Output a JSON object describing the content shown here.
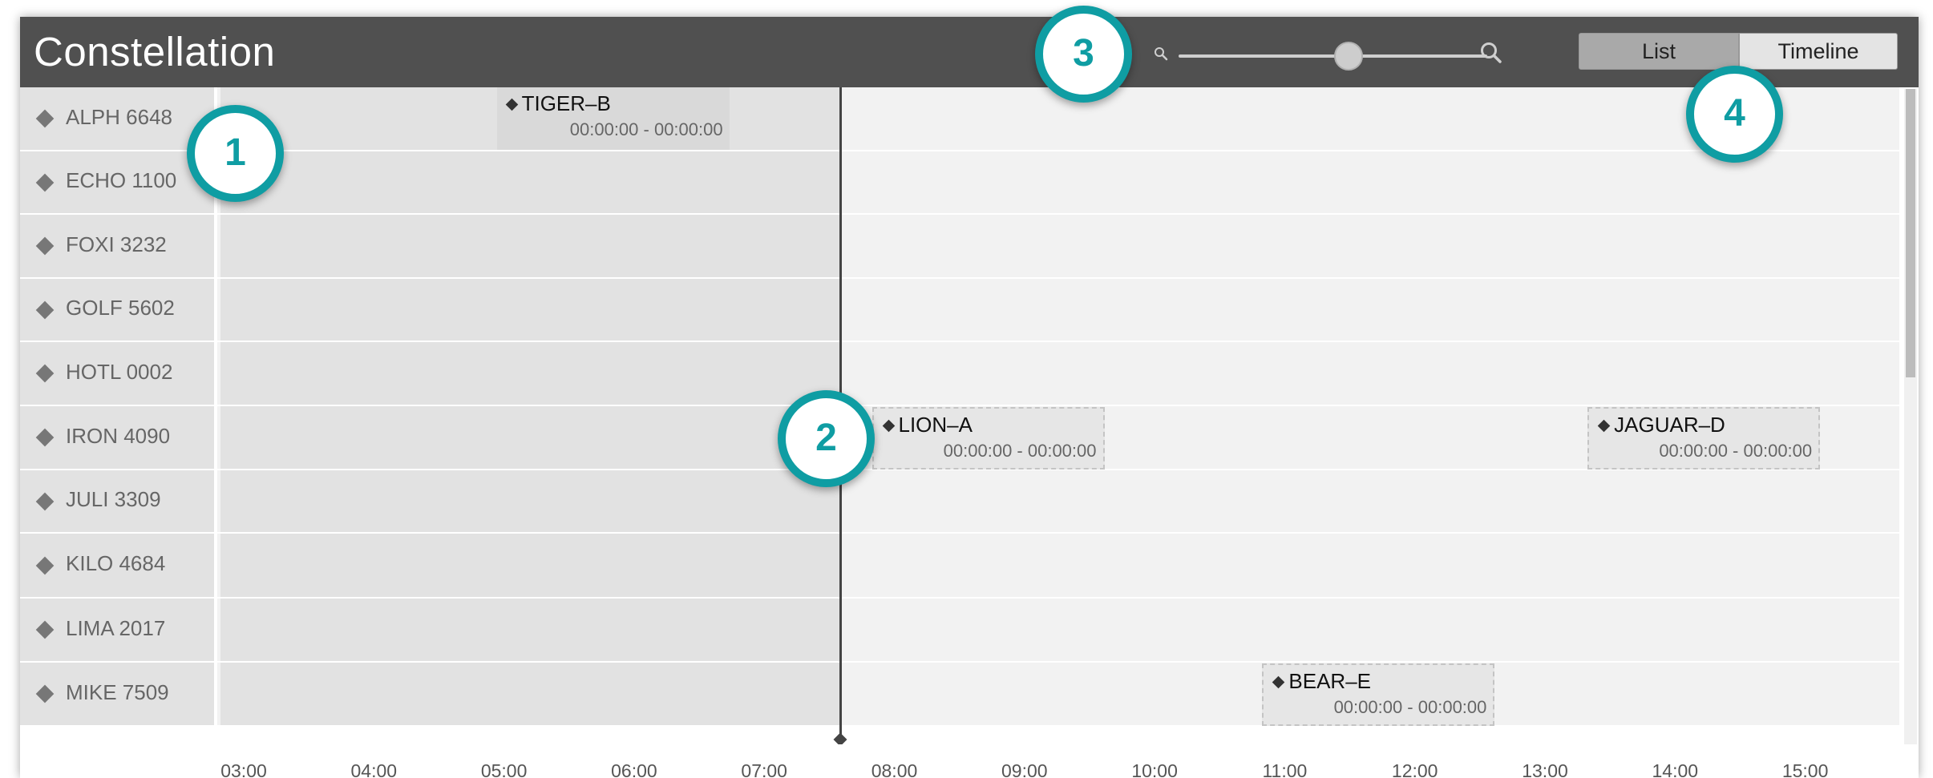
{
  "app": {
    "title": "Constellation"
  },
  "toolbar": {
    "zoom_out_icon": "zoom-out-magnifier-icon",
    "zoom_in_icon": "zoom-in-magnifier-icon",
    "zoom_level": 0.55,
    "views": {
      "list": "List",
      "timeline": "Timeline",
      "selected": "List"
    }
  },
  "rows": [
    {
      "label": "ALPH 6648"
    },
    {
      "label": "ECHO 1100"
    },
    {
      "label": "FOXI 3232"
    },
    {
      "label": "GOLF 5602"
    },
    {
      "label": "HOTL 0002"
    },
    {
      "label": "IRON 4090"
    },
    {
      "label": "JULI 3309"
    },
    {
      "label": "KILO 4684"
    },
    {
      "label": "LIMA 2017"
    },
    {
      "label": "MIKE 7509"
    }
  ],
  "events": [
    {
      "name": "TIGER–B",
      "time": "00:00:00 - 00:00:00",
      "row": "ALPH 6648",
      "start": "05:00",
      "style": "solid"
    },
    {
      "name": "LION–A",
      "time": "00:00:00 - 00:00:00",
      "row": "IRON 4090",
      "start": "08:00",
      "style": "dashed"
    },
    {
      "name": "JAGUAR–D",
      "time": "00:00:00 - 00:00:00",
      "row": "IRON 4090",
      "start": "13:30",
      "style": "dashed"
    },
    {
      "name": "BEAR–E",
      "time": "00:00:00 - 00:00:00",
      "row": "MIKE 7509",
      "start": "11:00",
      "style": "dashed"
    }
  ],
  "axis": {
    "ticks": [
      "03:00",
      "04:00",
      "05:00",
      "06:00",
      "07:00",
      "08:00",
      "09:00",
      "10:00",
      "11:00",
      "12:00",
      "13:00",
      "14:00",
      "15:00"
    ],
    "now": "07:35"
  },
  "callouts": [
    "1",
    "2",
    "3",
    "4"
  ],
  "colors": {
    "header": "#505050",
    "accent": "#0f9da3",
    "past_region": "#e2e2e2",
    "future_region": "#f2f2f2"
  }
}
